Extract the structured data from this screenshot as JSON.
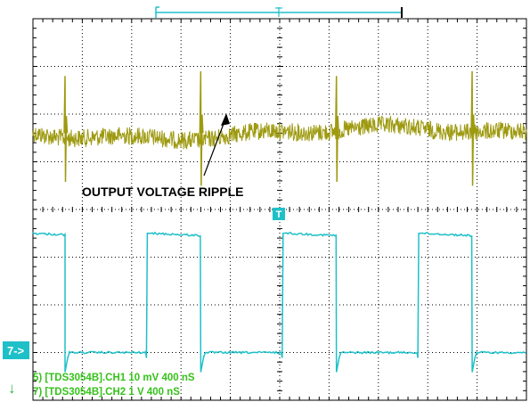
{
  "chart_data": {
    "type": "line",
    "title": "",
    "xlabel": "",
    "ylabel": "",
    "grid": true,
    "x_divisions": 10,
    "y_divisions": 8,
    "annotation": "OUTPUT VOLTAGE RIPPLE",
    "trigger_marker_label": "T",
    "channel_marker_label": "7->",
    "ground_marker_glyph": "↓",
    "series": [
      {
        "name": "5) [TDS3054B].CH1  10 mV   400 nS",
        "color": "#9e9a10",
        "shape": "ripple",
        "baseline_div": 2.4,
        "spike_time_div": [
          0.65,
          3.4,
          6.15,
          8.9
        ],
        "spike_amplitude_div": [
          1.2,
          1.3,
          1.2,
          1.3
        ]
      },
      {
        "name": "7) [TDS3054B].CH2  1  V   400 nS",
        "color": "#1ec0c8",
        "shape": "square",
        "high_level_div": 4.5,
        "low_level_div": 7.0,
        "falling_edges_div": [
          0.65,
          3.4,
          6.15,
          8.9
        ],
        "rising_edges_div": [
          2.3,
          5.05,
          7.8
        ]
      }
    ]
  },
  "colors": {
    "grid": "#000000",
    "ch1": "#9e9a10",
    "ch2": "#1ec0c8",
    "legend_text": "#35c21a",
    "annotation": "#000000"
  }
}
